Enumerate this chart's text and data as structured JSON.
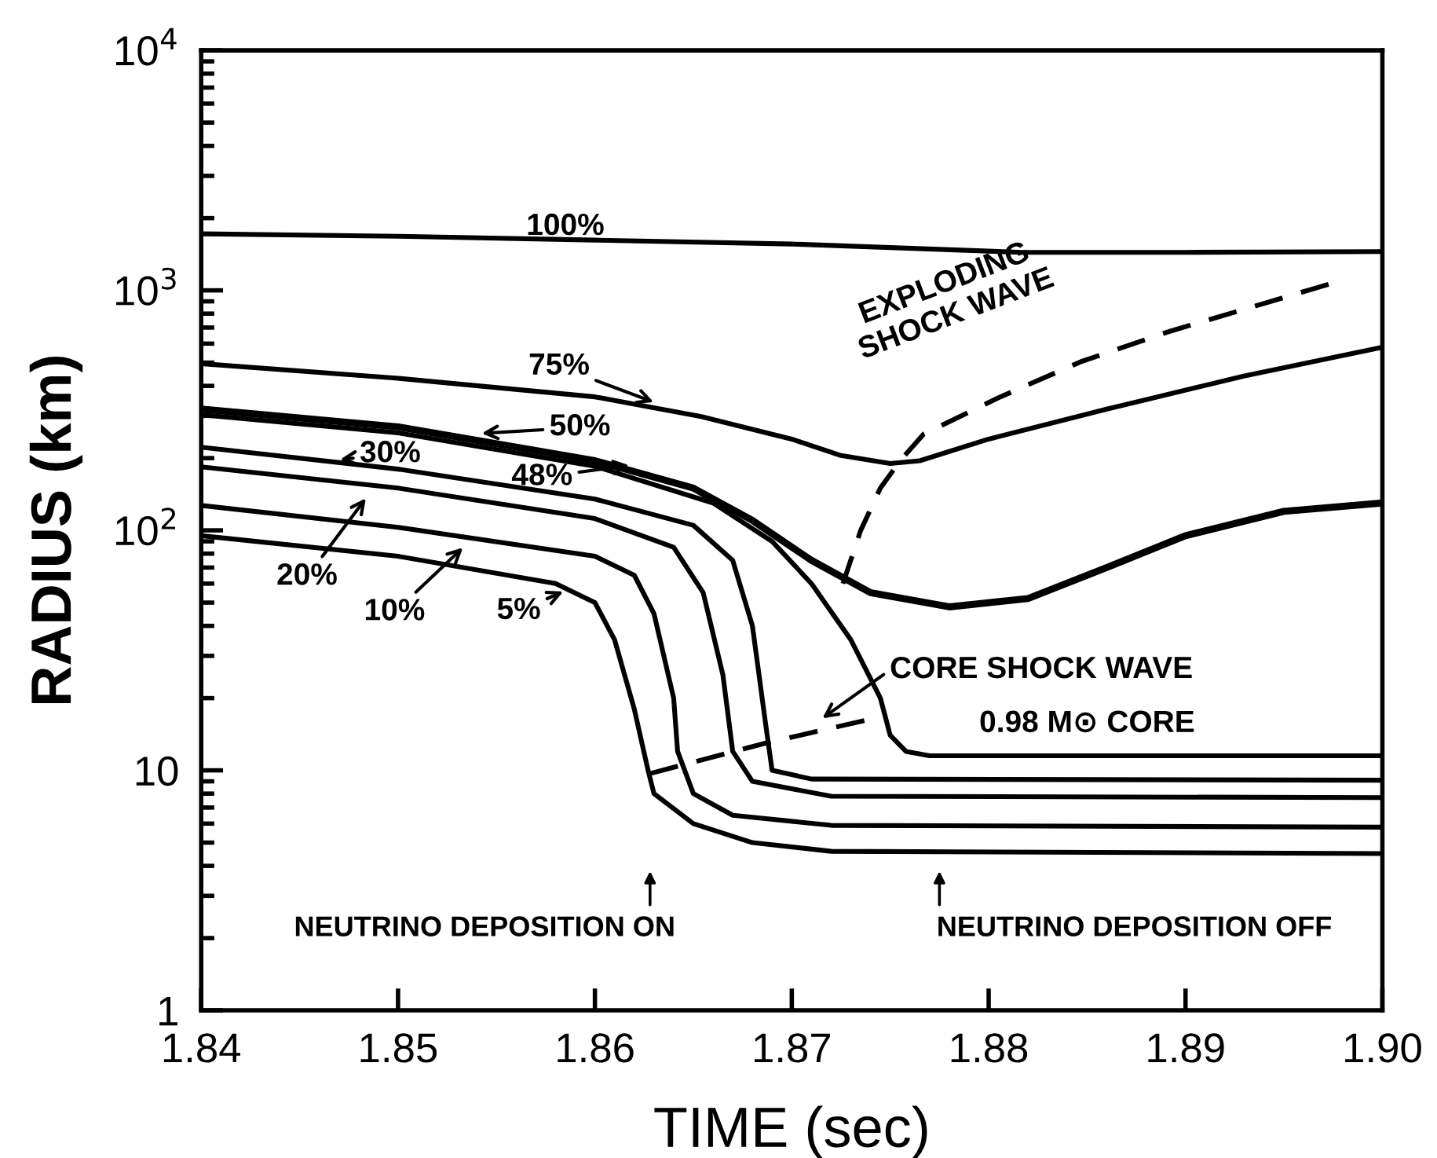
{
  "chart_data": {
    "type": "line",
    "xlabel": "TIME (sec)",
    "ylabel": "RADIUS (km)",
    "log": "y",
    "xlim": [
      1.84,
      1.9
    ],
    "xticks": [
      1.84,
      1.85,
      1.86,
      1.87,
      1.88,
      1.89,
      {
        "value": 1.9,
        "label": "1.90"
      }
    ],
    "ylim": [
      1,
      10000
    ],
    "yticks": [
      1,
      10,
      {
        "value": 100,
        "label": "10$^{2}$"
      },
      {
        "value": 1000,
        "label": "10$^{3}$"
      },
      {
        "value": 10000,
        "label": "10$^{4}$"
      }
    ],
    "grid": false,
    "marker": "none",
    "series": [
      {
        "color": "#000000",
        "line_style": "solid",
        "x": [
          1.84,
          1.85,
          1.86,
          1.87,
          1.8817,
          1.89,
          1.9
        ],
        "values": [
          1720,
          1680,
          1620,
          1560,
          1440,
          1440,
          1450
        ]
      },
      {
        "color": "#000000",
        "line_style": "solid",
        "x": [
          1.84,
          1.85,
          1.86,
          1.8654,
          1.87,
          1.8725,
          1.875,
          1.8765,
          1.88,
          1.886,
          1.893,
          1.9
        ],
        "values": [
          495,
          430,
          360,
          298,
          240,
          205,
          190,
          195,
          240,
          320,
          440,
          580
        ]
      },
      {
        "color": "#000000",
        "line_style": "solid",
        "x": [
          1.84,
          1.85,
          1.86,
          1.865,
          1.868,
          1.871,
          1.874,
          1.878,
          1.882,
          1.886,
          1.89,
          1.895,
          1.9
        ],
        "values": [
          320,
          270,
          195,
          150,
          110,
          75,
          55,
          48,
          52,
          70,
          95,
          120,
          130
        ]
      },
      {
        "color": "#000000",
        "line_style": "solid",
        "x": [
          1.84,
          1.85,
          1.86,
          1.866,
          1.869,
          1.871,
          1.873,
          1.8745,
          1.875,
          1.8758,
          1.877,
          1.9
        ],
        "values": [
          303,
          255,
          185,
          130,
          90,
          60,
          35,
          20,
          14,
          12,
          11.5,
          11.5
        ]
      },
      {
        "color": "#000000",
        "line_style": "solid",
        "x": [
          1.84,
          1.85,
          1.86,
          1.865,
          1.867,
          1.868,
          1.8687,
          1.869,
          1.871,
          1.9
        ],
        "values": [
          222,
          180,
          135,
          105,
          75,
          40,
          15,
          10,
          9.2,
          9.1
        ]
      },
      {
        "color": "#000000",
        "line_style": "solid",
        "x": [
          1.84,
          1.85,
          1.86,
          1.864,
          1.8655,
          1.8665,
          1.867,
          1.868,
          1.872,
          1.9
        ],
        "values": [
          184,
          150,
          112,
          85,
          55,
          25,
          12,
          9,
          7.8,
          7.7
        ]
      },
      {
        "color": "#000000",
        "line_style": "solid",
        "x": [
          1.84,
          1.85,
          1.86,
          1.862,
          1.863,
          1.864,
          1.8642,
          1.865,
          1.867,
          1.872,
          1.9
        ],
        "values": [
          127,
          103,
          78,
          65,
          45,
          20,
          12,
          8,
          6.5,
          5.9,
          5.8
        ]
      },
      {
        "color": "#000000",
        "line_style": "solid",
        "x": [
          1.84,
          1.85,
          1.858,
          1.86,
          1.861,
          1.862,
          1.8627,
          1.863,
          1.865,
          1.868,
          1.872,
          1.9
        ],
        "values": [
          95,
          78,
          60,
          50,
          35,
          18,
          10,
          8,
          6,
          5,
          4.6,
          4.5
        ]
      },
      {
        "color": "#000000",
        "line_style": "dashed",
        "x": [
          1.8628,
          1.8687,
          1.8745
        ],
        "values": [
          9.7,
          13,
          16.7
        ]
      },
      {
        "color": "#000000",
        "line_style": "dashed",
        "x": [
          1.8726,
          1.8735,
          1.8745,
          1.8755,
          1.8767,
          1.8805,
          1.8847,
          1.8892,
          1.8976
        ],
        "values": [
          60,
          100,
          150,
          195,
          252,
          357,
          505,
          675,
          1080
        ]
      }
    ],
    "annotations": [
      {
        "text": "100%",
        "x": 1.8585,
        "y": 1620
      },
      {
        "text": "75%",
        "x": 1.8635,
        "y": 330
      },
      {
        "text": "50%",
        "x": 1.8537,
        "y": 252
      },
      {
        "text": "48%",
        "x": 1.8623,
        "y": 189
      },
      {
        "text": "30%",
        "x": 1.8465,
        "y": 195
      },
      {
        "text": "20%",
        "x": 1.8487,
        "y": 148
      },
      {
        "text": "10%",
        "x": 1.8537,
        "y": 91
      },
      {
        "text": "5%",
        "x": 1.8589,
        "y": 58
      },
      {
        "text": "EXPLODING\nSHOCK WAVE",
        "x": 1.8805,
        "y": 357
      },
      {
        "text": "CORE SHOCK WAVE",
        "x": 1.8711,
        "y": 15.5
      },
      {
        "text": "0.98 M⊙ CORE",
        "x": 1.885,
        "y": 11.5
      },
      "NEUTRINO DEPOSITION ON",
      "NEUTRINO DEPOSITION OFF"
    ]
  }
}
